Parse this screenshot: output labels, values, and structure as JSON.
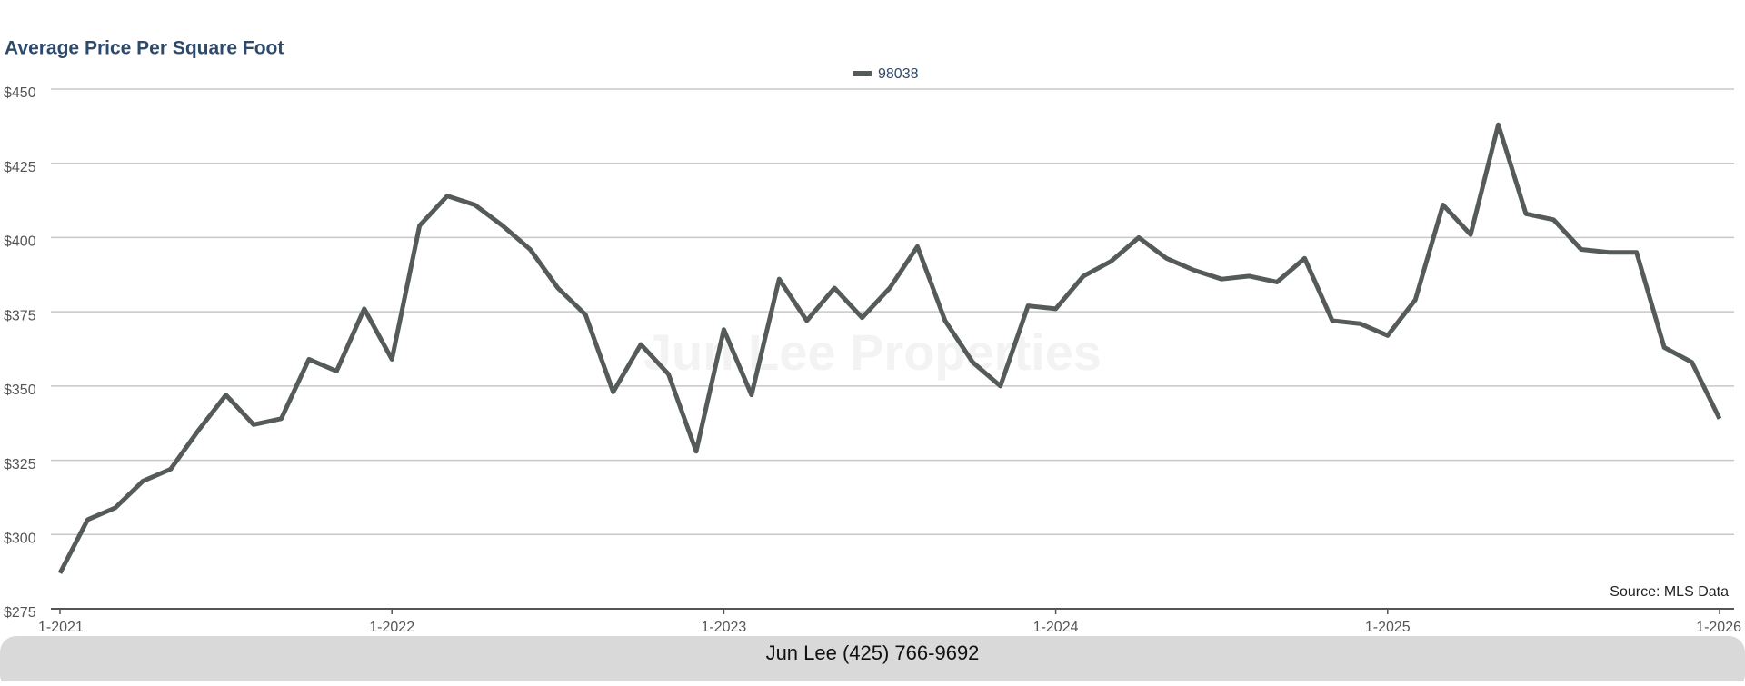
{
  "chart_data": {
    "type": "line",
    "title": "Average Price Per Square Foot",
    "watermark": "Jun Lee Properties",
    "source": "Source: MLS Data",
    "footer": "Jun Lee (425) 766-9692",
    "categories": [
      "1-2021",
      null,
      null,
      null,
      null,
      null,
      null,
      null,
      null,
      null,
      null,
      null,
      "1-2022",
      null,
      null,
      null,
      null,
      null,
      null,
      null,
      null,
      null,
      null,
      null,
      "1-2023",
      null,
      null,
      null,
      null,
      null,
      null,
      null,
      null,
      null,
      null,
      null,
      "1-2024",
      null,
      null,
      null,
      null,
      null,
      null,
      null,
      null,
      null,
      null,
      null,
      "1-2025",
      null,
      null,
      null,
      null,
      null,
      null,
      null,
      null,
      null,
      null,
      null,
      "1-2026"
    ],
    "series": [
      {
        "name": "98038",
        "color": "#555b5a",
        "values": [
          287,
          305,
          309,
          318,
          322,
          335,
          347,
          337,
          339,
          359,
          355,
          376,
          359,
          404,
          414,
          411,
          404,
          396,
          383,
          374,
          348,
          364,
          354,
          328,
          369,
          347,
          386,
          372,
          383,
          373,
          383,
          397,
          372,
          358,
          350,
          377,
          376,
          387,
          392,
          400,
          393,
          389,
          386,
          387,
          385,
          393,
          372,
          371,
          367,
          379,
          411,
          401,
          438,
          408,
          406,
          396,
          395,
          395,
          363,
          358,
          339
        ]
      }
    ],
    "ylim": [
      275,
      450
    ],
    "yticks": [
      {
        "value": 275,
        "label": "$275"
      },
      {
        "value": 300,
        "label": "$300"
      },
      {
        "value": 325,
        "label": "$325"
      },
      {
        "value": 350,
        "label": "$350"
      },
      {
        "value": 375,
        "label": "$375"
      },
      {
        "value": 400,
        "label": "$400"
      },
      {
        "value": 425,
        "label": "$425"
      },
      {
        "value": 450,
        "label": "$450"
      }
    ],
    "grid": true,
    "legend": "top"
  }
}
